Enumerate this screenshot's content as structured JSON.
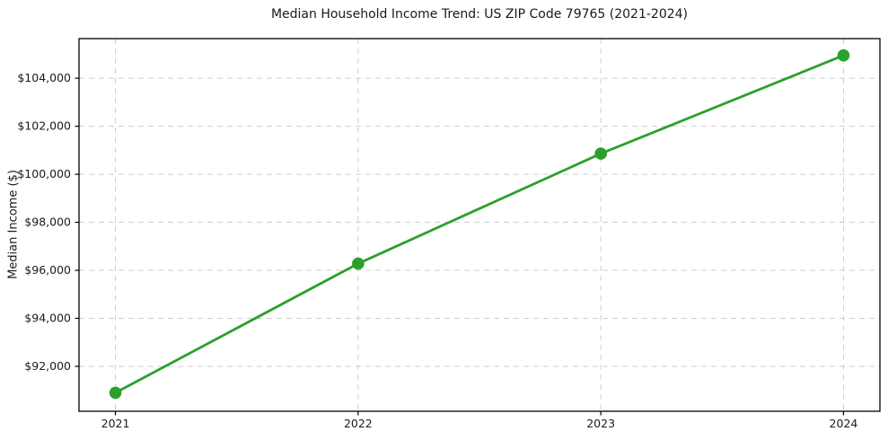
{
  "chart_data": {
    "type": "line",
    "title": "Median Household Income Trend: US ZIP Code 79765 (2021-2024)",
    "xlabel": "",
    "ylabel": "Median Income ($)",
    "x": [
      2021,
      2022,
      2023,
      2024
    ],
    "values": [
      90900,
      96280,
      100860,
      104950
    ],
    "x_tick_labels": [
      "2021",
      "2022",
      "2023",
      "2024"
    ],
    "y_ticks": [
      92000,
      94000,
      96000,
      98000,
      100000,
      102000,
      104000
    ],
    "y_tick_labels": [
      "$92,000",
      "$94,000",
      "$96,000",
      "$98,000",
      "$100,000",
      "$102,000",
      "$104,000"
    ],
    "xlim": [
      2020.85,
      2024.15
    ],
    "ylim": [
      90130,
      105650
    ],
    "grid": true,
    "grid_style": "dashed",
    "legend": false,
    "colors": {
      "line": "#2ca02c",
      "marker": "#2ca02c",
      "grid": "#cfcfcf",
      "axis": "#000000",
      "text": "#1a1a1a",
      "background": "#ffffff"
    }
  }
}
